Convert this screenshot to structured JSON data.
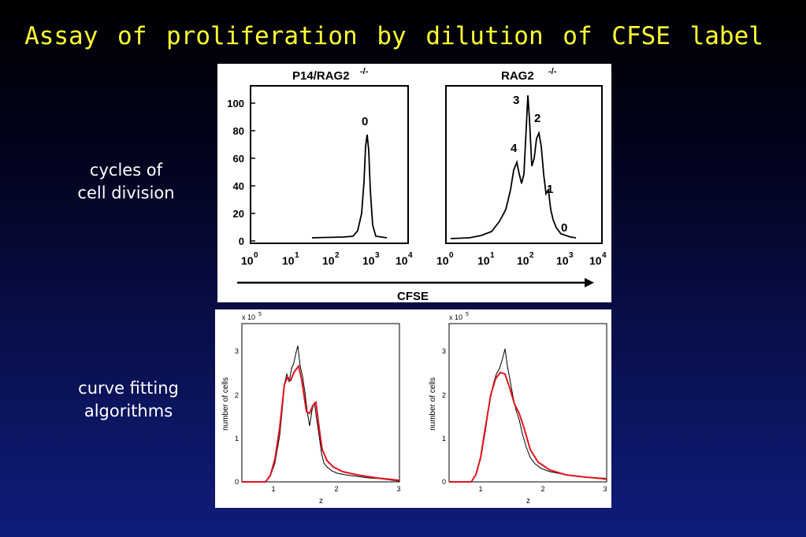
{
  "slide_title": "Assay of proliferation by dilution of CFSE label",
  "labels": {
    "cycles": [
      "cycles of",
      "cell division"
    ],
    "curve": [
      "curve fitting",
      "algorithms"
    ]
  },
  "top_panel": {
    "xlabel": "CFSE",
    "left": {
      "title": "P14/RAG2",
      "title_sup": "-/-",
      "peaks": [
        "0"
      ]
    },
    "right": {
      "title": "RAG2",
      "title_sup": "-/-",
      "peaks": [
        "3",
        "2",
        "4",
        "1",
        "0"
      ]
    },
    "y_ticks": [
      "100",
      "80",
      "60",
      "40",
      "20",
      "0"
    ],
    "x_ticks": [
      "0",
      "1",
      "2",
      "3",
      "4"
    ],
    "x_tick_base": "10"
  },
  "bottom_panel": {
    "multiplier": "x 10",
    "multiplier_exp": "5",
    "ylabel": "number of cells",
    "xlabel": "z",
    "y_ticks": [
      "3",
      "2",
      "1",
      "0"
    ],
    "x_ticks": [
      "1",
      "2",
      "3"
    ],
    "fit_color": "#e0141e",
    "data_color": "#000000"
  },
  "chart_data": [
    {
      "type": "line",
      "title": "P14/RAG2-/-",
      "xlabel": "CFSE",
      "xscale": "log",
      "xlim": [
        1,
        10000
      ],
      "ylim": [
        0,
        100
      ],
      "series": [
        {
          "x": [
            30,
            300,
            600,
            800,
            900,
            1000,
            1100,
            1300,
            2000
          ],
          "y": [
            1,
            2,
            15,
            55,
            78,
            50,
            15,
            2,
            0
          ]
        }
      ]
    },
    {
      "type": "line",
      "title": "RAG2-/-",
      "xlabel": "CFSE",
      "xscale": "log",
      "xlim": [
        1,
        10000
      ],
      "ylim": [
        0,
        100
      ],
      "series": [
        {
          "x": [
            3,
            10,
            20,
            35,
            50,
            60,
            70,
            90,
            100,
            110,
            140,
            170,
            200,
            230,
            280,
            350,
            400,
            480,
            600,
            1000,
            2000
          ],
          "y": [
            0,
            3,
            8,
            18,
            40,
            58,
            48,
            85,
            108,
            62,
            82,
            66,
            80,
            55,
            35,
            20,
            35,
            12,
            6,
            1,
            0
          ]
        }
      ]
    },
    {
      "type": "line",
      "xlabel": "z",
      "ylabel": "number of cells",
      "xlim": [
        0.5,
        3
      ],
      "ylim": [
        0,
        3.3
      ],
      "series": [
        {
          "x": [
            0.5,
            0.9,
            1.0,
            1.1,
            1.2,
            1.3,
            1.35,
            1.45,
            1.55,
            1.65,
            1.7,
            1.8,
            1.9,
            2.0,
            2.2,
            2.4,
            2.6,
            2.8,
            2.95
          ],
          "y": [
            0,
            0,
            0.3,
            1.0,
            2.0,
            2.45,
            2.3,
            2.65,
            1.7,
            1.8,
            1.3,
            0.6,
            0.4,
            0.3,
            0.15,
            0.1,
            0.08,
            0.05,
            0
          ]
        }
      ]
    },
    {
      "type": "line",
      "xlabel": "z",
      "ylabel": "number of cells",
      "xlim": [
        0.5,
        3
      ],
      "ylim": [
        0,
        3.3
      ],
      "series": [
        {
          "x": [
            0.5,
            0.9,
            1.0,
            1.1,
            1.2,
            1.3,
            1.4,
            1.5,
            1.6,
            1.7,
            1.8,
            1.9,
            2.0,
            2.2,
            2.4,
            2.6,
            2.8,
            2.95
          ],
          "y": [
            0,
            0,
            0.2,
            0.8,
            1.8,
            2.4,
            2.55,
            2.1,
            1.6,
            1.1,
            0.6,
            0.4,
            0.3,
            0.18,
            0.12,
            0.08,
            0.05,
            0
          ]
        }
      ]
    }
  ]
}
